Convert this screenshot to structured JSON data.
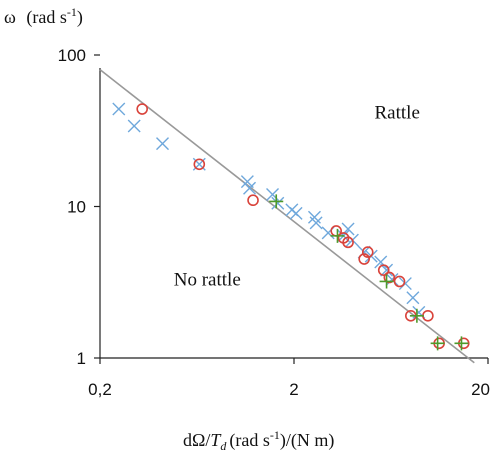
{
  "chart_data": {
    "type": "scatter",
    "title": "",
    "ylabel_symbol": "ω",
    "ylabel_unit_base": "(rad s",
    "ylabel_unit_exp": "-1",
    "ylabel_unit_close": ")",
    "xlabel_parts": {
      "d": "d",
      "omega": "Ω",
      "slash1": "/",
      "T": "T",
      "Tsub": "d",
      "unit_base": "(rad s",
      "unit_exp": "-1",
      "unit_close": ")/(N m)"
    },
    "x_scale": "log",
    "y_scale": "log",
    "xlim": [
      0.2,
      20
    ],
    "ylim": [
      1,
      100
    ],
    "x_ticks": [
      0.2,
      2,
      20
    ],
    "x_tick_labels": [
      "0,2",
      "2",
      "20"
    ],
    "y_ticks": [
      1,
      10,
      100
    ],
    "y_tick_labels": [
      "1",
      "10",
      "100"
    ],
    "grid": false,
    "annotations": [
      {
        "text": "Rattle",
        "x": 5.2,
        "y": 38
      },
      {
        "text": "No rattle",
        "x": 0.48,
        "y": 3.0
      }
    ],
    "line": {
      "x": [
        0.2,
        17.0
      ],
      "y": [
        80,
        0.93
      ]
    },
    "series": [
      {
        "marker": "x",
        "color": "#6fa8dc",
        "points": [
          [
            0.25,
            44
          ],
          [
            0.3,
            34
          ],
          [
            0.42,
            26
          ],
          [
            0.65,
            19
          ],
          [
            1.15,
            14.6
          ],
          [
            1.18,
            13.2
          ],
          [
            1.55,
            12
          ],
          [
            1.65,
            10.5
          ],
          [
            1.95,
            9.5
          ],
          [
            2.05,
            9
          ],
          [
            2.55,
            8.5
          ],
          [
            2.6,
            7.8
          ],
          [
            3.0,
            6.7
          ],
          [
            3.6,
            6.4
          ],
          [
            3.8,
            7.1
          ],
          [
            4.0,
            6.0
          ],
          [
            4.6,
            5.0
          ],
          [
            5.0,
            4.7
          ],
          [
            5.6,
            4.3
          ],
          [
            6.0,
            3.8
          ],
          [
            6.4,
            3.3
          ],
          [
            7.5,
            3.1
          ],
          [
            8.2,
            2.5
          ],
          [
            8.8,
            2.0
          ]
        ]
      },
      {
        "marker": "o",
        "color": "#d9433b",
        "points": [
          [
            0.33,
            44
          ],
          [
            0.65,
            19
          ],
          [
            1.23,
            11
          ],
          [
            3.3,
            6.9
          ],
          [
            3.6,
            6.2
          ],
          [
            3.8,
            5.8
          ],
          [
            4.6,
            4.5
          ],
          [
            4.8,
            5.0
          ],
          [
            5.8,
            3.8
          ],
          [
            6.2,
            3.4
          ],
          [
            7.0,
            3.2
          ],
          [
            8.0,
            1.9
          ],
          [
            9.8,
            1.9
          ],
          [
            11.2,
            1.25
          ],
          [
            15.0,
            1.25
          ]
        ]
      },
      {
        "marker": "+",
        "color": "#4e9a2a",
        "points": [
          [
            1.62,
            10.8
          ],
          [
            3.35,
            6.4
          ],
          [
            6.0,
            3.2
          ],
          [
            8.6,
            1.9
          ],
          [
            11.0,
            1.25
          ],
          [
            14.6,
            1.25
          ]
        ]
      }
    ]
  }
}
